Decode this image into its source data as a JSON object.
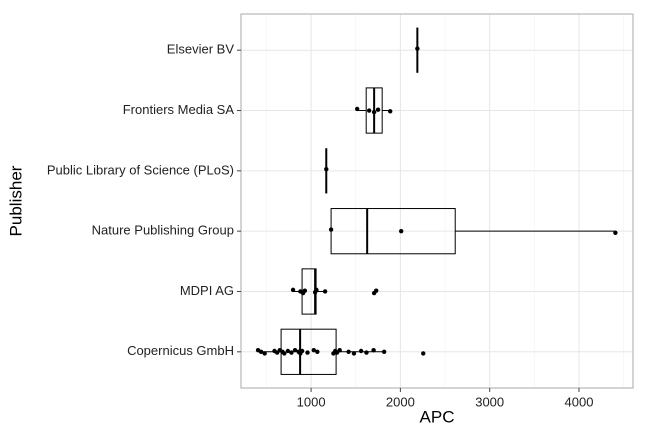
{
  "chart_data": {
    "type": "boxplot",
    "orientation": "horizontal",
    "x_label": "APC",
    "y_label": "Publisher",
    "categories": [
      "Elsevier BV",
      "Frontiers Media SA",
      "Public Library of Science (PLoS)",
      "Nature Publishing Group",
      "MDPI AG",
      "Copernicus GmbH"
    ],
    "boxes": [
      {
        "min": 2190,
        "q1": 2190,
        "median": 2190,
        "q3": 2190,
        "max": 2190
      },
      {
        "min": 1516,
        "q1": 1617,
        "median": 1706,
        "q3": 1796,
        "max": 1886
      },
      {
        "min": 1170,
        "q1": 1170,
        "median": 1170,
        "q3": 1170,
        "max": 1170
      },
      {
        "min": 1224,
        "q1": 1224,
        "median": 1628,
        "q3": 2614,
        "max": 4408
      },
      {
        "min": 798,
        "q1": 899,
        "median": 1045,
        "q3": 1056,
        "max": 1157
      },
      {
        "min": 406,
        "q1": 664,
        "median": 877,
        "q3": 1280,
        "max": 1818
      }
    ],
    "points": [
      [
        2190
      ],
      [
        1516,
        1650,
        1706,
        1750,
        1886
      ],
      [
        1170
      ],
      [
        1224,
        2009,
        4408
      ],
      [
        798,
        880,
        910,
        930,
        1045,
        1060,
        1157,
        1706,
        1729
      ],
      [
        406,
        440,
        480,
        590,
        620,
        650,
        680,
        700,
        740,
        780,
        820,
        860,
        880,
        900,
        960,
        1030,
        1070,
        1250,
        1270,
        1290,
        1320,
        1420,
        1480,
        1560,
        1620,
        1700,
        1818,
        2256
      ]
    ],
    "xlim": [
      215,
      4605
    ],
    "xticks": [
      1000,
      2000,
      3000,
      4000
    ],
    "xminor": [
      500,
      1500,
      2500,
      3500,
      4500
    ],
    "grid": true,
    "box_color": "#000000",
    "point_color": "#000000"
  }
}
